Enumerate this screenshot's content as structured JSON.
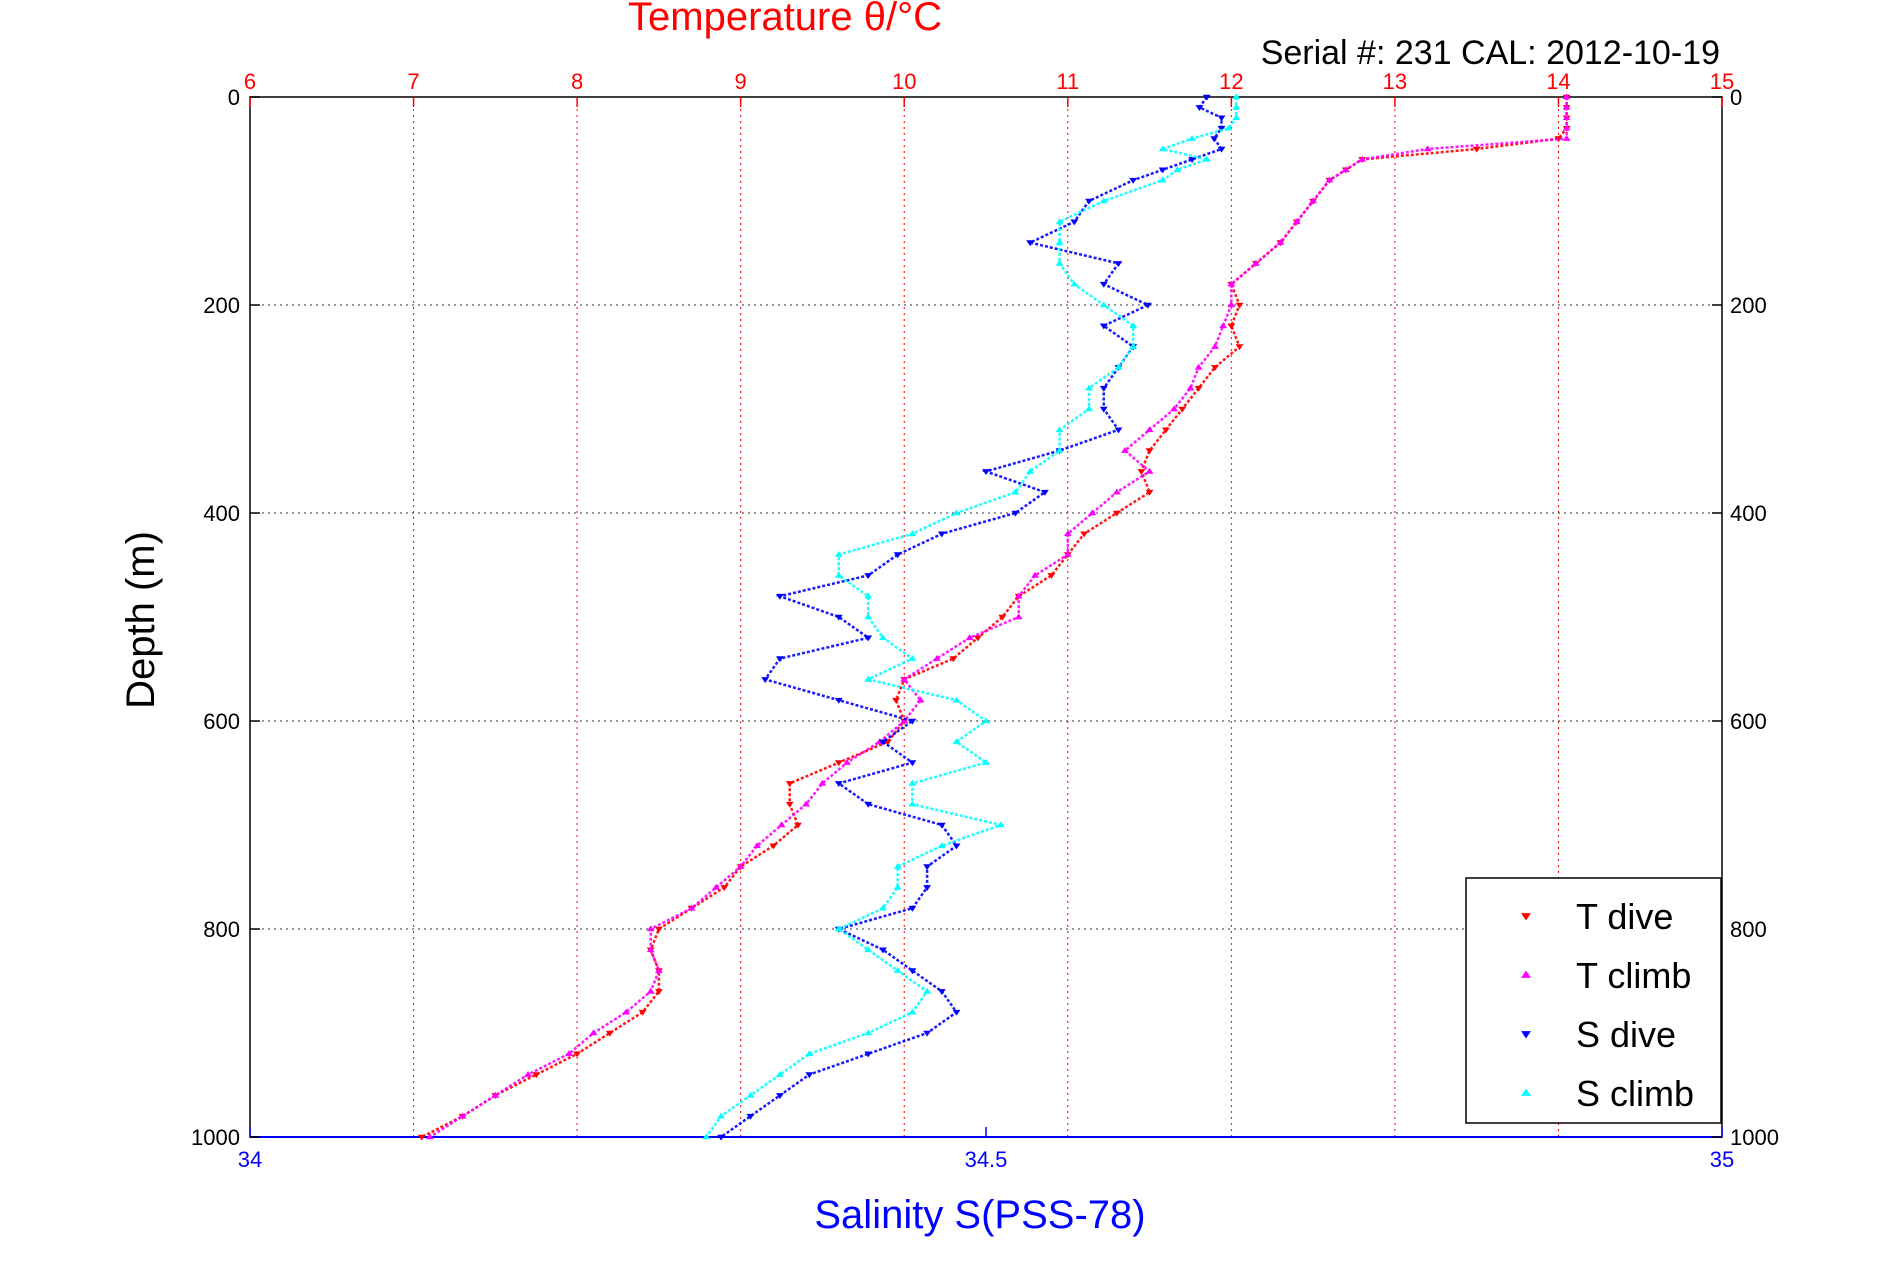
{
  "chart_data": {
    "type": "scatter",
    "title_top": "Temperature θ/°C",
    "subtitle": "Serial #: 231  CAL: 2012-10-19",
    "xlabel_bottom": "Salinity S(PSS-78)",
    "ylabel": "Depth (m)",
    "x_top": {
      "label": "Temperature θ/°C",
      "lim": [
        6,
        15
      ],
      "ticks": [
        "6",
        "7",
        "8",
        "9",
        "10",
        "11",
        "12",
        "13",
        "14",
        "15"
      ]
    },
    "x_bottom": {
      "label": "Salinity S(PSS-78)",
      "lim": [
        34,
        35
      ],
      "ticks": [
        "34",
        "34.5",
        "35"
      ]
    },
    "y": {
      "label": "Depth (m)",
      "lim": [
        0,
        1000
      ],
      "reversed": true,
      "ticks": [
        "0",
        "200",
        "400",
        "600",
        "800",
        "1000"
      ]
    },
    "grid": true,
    "legend": {
      "placement": "bottom-right",
      "entries": [
        "T dive",
        "T climb",
        "S dive",
        "S climb"
      ]
    },
    "series": [
      {
        "name": "T dive",
        "axis": "temperature",
        "color": "#ff0000",
        "marker": "triangle-down",
        "depth": [
          0,
          10,
          20,
          30,
          40,
          50,
          60,
          70,
          80,
          100,
          120,
          140,
          160,
          180,
          200,
          220,
          240,
          260,
          280,
          300,
          320,
          340,
          360,
          380,
          400,
          420,
          440,
          460,
          480,
          500,
          520,
          540,
          560,
          580,
          600,
          620,
          640,
          660,
          680,
          700,
          720,
          740,
          760,
          780,
          800,
          820,
          840,
          860,
          880,
          900,
          920,
          940,
          960,
          980,
          1000
        ],
        "values": [
          14.05,
          14.05,
          14.05,
          14.05,
          14.0,
          13.5,
          12.8,
          12.7,
          12.6,
          12.5,
          12.4,
          12.3,
          12.15,
          12.0,
          12.05,
          12.0,
          12.05,
          11.9,
          11.8,
          11.7,
          11.6,
          11.5,
          11.45,
          11.5,
          11.3,
          11.1,
          11.0,
          10.9,
          10.7,
          10.6,
          10.45,
          10.3,
          10.0,
          9.95,
          10.0,
          9.9,
          9.6,
          9.3,
          9.3,
          9.35,
          9.2,
          9.0,
          8.9,
          8.7,
          8.5,
          8.45,
          8.5,
          8.5,
          8.4,
          8.2,
          8.0,
          7.75,
          7.5,
          7.3,
          7.05
        ]
      },
      {
        "name": "T climb",
        "axis": "temperature",
        "color": "#ff00ff",
        "marker": "triangle-up",
        "depth": [
          0,
          10,
          20,
          30,
          40,
          50,
          60,
          70,
          80,
          100,
          120,
          140,
          160,
          180,
          200,
          220,
          240,
          260,
          280,
          300,
          320,
          340,
          360,
          380,
          400,
          420,
          440,
          460,
          480,
          500,
          520,
          540,
          560,
          580,
          600,
          620,
          640,
          660,
          680,
          700,
          720,
          740,
          760,
          780,
          800,
          820,
          840,
          860,
          880,
          900,
          920,
          940,
          960,
          980,
          1000
        ],
        "values": [
          14.05,
          14.05,
          14.05,
          14.05,
          14.05,
          13.2,
          12.8,
          12.7,
          12.6,
          12.5,
          12.4,
          12.3,
          12.15,
          12.0,
          12.0,
          11.95,
          11.9,
          11.8,
          11.75,
          11.65,
          11.5,
          11.35,
          11.5,
          11.3,
          11.15,
          11.0,
          11.0,
          10.8,
          10.7,
          10.7,
          10.4,
          10.2,
          10.0,
          10.1,
          10.0,
          9.85,
          9.65,
          9.5,
          9.4,
          9.25,
          9.1,
          9.0,
          8.85,
          8.7,
          8.45,
          8.45,
          8.5,
          8.45,
          8.3,
          8.1,
          7.95,
          7.7,
          7.5,
          7.3,
          7.1
        ]
      },
      {
        "name": "S dive",
        "axis": "salinity",
        "color": "#0000ff",
        "marker": "triangle-down",
        "depth": [
          0,
          10,
          20,
          30,
          40,
          50,
          60,
          70,
          80,
          100,
          120,
          140,
          160,
          180,
          200,
          220,
          240,
          260,
          280,
          300,
          320,
          340,
          360,
          380,
          400,
          420,
          440,
          460,
          480,
          500,
          520,
          540,
          560,
          580,
          600,
          620,
          640,
          660,
          680,
          700,
          720,
          740,
          760,
          780,
          800,
          820,
          840,
          860,
          880,
          900,
          920,
          940,
          960,
          980,
          1000
        ],
        "values": [
          34.65,
          34.645,
          34.66,
          34.66,
          34.655,
          34.66,
          34.64,
          34.62,
          34.6,
          34.57,
          34.56,
          34.53,
          34.59,
          34.58,
          34.61,
          34.58,
          34.6,
          34.59,
          34.58,
          34.58,
          34.59,
          34.55,
          34.5,
          34.54,
          34.52,
          34.47,
          34.44,
          34.42,
          34.36,
          34.4,
          34.42,
          34.36,
          34.35,
          34.4,
          34.45,
          34.43,
          34.45,
          34.4,
          34.42,
          34.47,
          34.48,
          34.46,
          34.46,
          34.45,
          34.4,
          34.43,
          34.45,
          34.47,
          34.48,
          34.46,
          34.42,
          34.38,
          34.36,
          34.34,
          34.32
        ]
      },
      {
        "name": "S climb",
        "axis": "salinity",
        "color": "#00ffff",
        "marker": "triangle-up",
        "depth": [
          0,
          10,
          20,
          30,
          40,
          50,
          60,
          70,
          80,
          100,
          120,
          140,
          160,
          180,
          200,
          220,
          240,
          260,
          280,
          300,
          320,
          340,
          360,
          380,
          400,
          420,
          440,
          460,
          480,
          500,
          520,
          540,
          560,
          580,
          600,
          620,
          640,
          660,
          680,
          700,
          720,
          740,
          760,
          780,
          800,
          820,
          840,
          860,
          880,
          900,
          920,
          940,
          960,
          980,
          1000
        ],
        "values": [
          34.67,
          34.67,
          34.67,
          34.665,
          34.64,
          34.62,
          34.65,
          34.63,
          34.62,
          34.58,
          34.55,
          34.55,
          34.55,
          34.56,
          34.58,
          34.6,
          34.6,
          34.59,
          34.57,
          34.57,
          34.55,
          34.55,
          34.53,
          34.52,
          34.48,
          34.45,
          34.4,
          34.4,
          34.42,
          34.42,
          34.43,
          34.45,
          34.42,
          34.48,
          34.5,
          34.48,
          34.5,
          34.45,
          34.45,
          34.51,
          34.47,
          34.44,
          34.44,
          34.43,
          34.4,
          34.42,
          34.44,
          34.46,
          34.45,
          34.42,
          34.38,
          34.36,
          34.34,
          34.32,
          34.31
        ]
      }
    ]
  }
}
